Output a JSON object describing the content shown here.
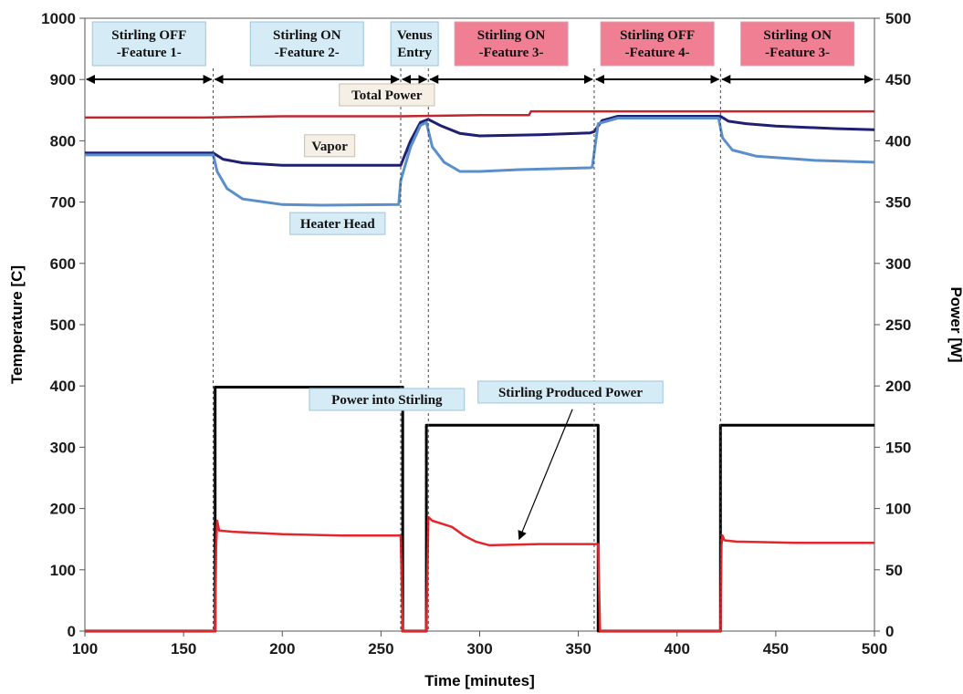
{
  "chart_data": {
    "type": "line",
    "xlabel": "Time [minutes]",
    "ylabel_left": "Temperature [C]",
    "ylabel_right": "Power [W]",
    "xlim": [
      100,
      500
    ],
    "ylim_left": [
      0,
      1000
    ],
    "ylim_right": [
      0,
      500
    ],
    "x_ticks": [
      "100",
      "150",
      "200",
      "250",
      "300",
      "350",
      "400",
      "450",
      "500"
    ],
    "y_left_ticks": [
      "0",
      "100",
      "200",
      "300",
      "400",
      "500",
      "600",
      "700",
      "800",
      "900",
      "1000"
    ],
    "y_right_ticks": [
      "0",
      "50",
      "100",
      "150",
      "200",
      "250",
      "300",
      "350",
      "400",
      "450",
      "500"
    ],
    "grid": false,
    "phase_boundaries": [
      165,
      260,
      274,
      358,
      422
    ],
    "phases": [
      {
        "lines": [
          "Stirling OFF",
          "-Feature 1-"
        ],
        "x_start": 100,
        "x_end": 165,
        "highlight": false
      },
      {
        "lines": [
          "Stirling ON",
          "-Feature 2-"
        ],
        "x_start": 165,
        "x_end": 260,
        "highlight": false
      },
      {
        "lines": [
          "Venus",
          "Entry"
        ],
        "x_start": 260,
        "x_end": 274,
        "highlight": false
      },
      {
        "lines": [
          "Stirling ON",
          "-Feature 3-"
        ],
        "x_start": 274,
        "x_end": 358,
        "highlight": true
      },
      {
        "lines": [
          "Stirling OFF",
          "-Feature 4-"
        ],
        "x_start": 358,
        "x_end": 422,
        "highlight": true
      },
      {
        "lines": [
          "Stirling ON",
          "-Feature 3-"
        ],
        "x_start": 422,
        "x_end": 500,
        "highlight": true
      }
    ],
    "series": [
      {
        "name": "Total Power",
        "axis": "right",
        "color": "#c0272d",
        "width": 2.5,
        "x": [
          100,
          102,
          104,
          160,
          200,
          260,
          300,
          325,
          326,
          360,
          420,
          500
        ],
        "y": [
          419,
          419,
          419,
          419,
          420,
          420,
          421,
          421,
          424,
          424,
          424,
          424
        ]
      },
      {
        "name": "Vapor",
        "axis": "left",
        "color": "#1f1f73",
        "width": 3,
        "x": [
          100,
          165,
          170,
          180,
          200,
          230,
          260,
          265,
          270,
          274,
          280,
          290,
          300,
          330,
          356,
          358,
          362,
          370,
          400,
          422,
          426,
          435,
          450,
          480,
          500
        ],
        "y": [
          780,
          780,
          770,
          764,
          760,
          760,
          760,
          800,
          830,
          835,
          825,
          812,
          808,
          810,
          813,
          815,
          833,
          840,
          840,
          840,
          832,
          828,
          824,
          820,
          818
        ]
      },
      {
        "name": "Heater Head",
        "axis": "left",
        "color": "#5a8fcc",
        "width": 3,
        "x": [
          100,
          165,
          167,
          172,
          180,
          200,
          220,
          259,
          260,
          265,
          270,
          273,
          276,
          282,
          290,
          300,
          320,
          356,
          357,
          360,
          370,
          400,
          421,
          423,
          428,
          440,
          470,
          500
        ],
        "y": [
          777,
          777,
          750,
          722,
          705,
          696,
          695,
          696,
          735,
          790,
          825,
          830,
          790,
          765,
          750,
          750,
          753,
          756,
          757,
          828,
          837,
          837,
          837,
          805,
          785,
          775,
          768,
          765
        ]
      },
      {
        "name": "Power into Stirling",
        "axis": "right",
        "color": "#000000",
        "width": 3,
        "x": [
          100,
          166,
          166,
          261,
          261,
          273,
          273,
          360,
          360,
          422,
          422,
          500
        ],
        "y": [
          0,
          0,
          199,
          199,
          0,
          0,
          168,
          168,
          0,
          0,
          168,
          168
        ]
      },
      {
        "name": "Stirling Produced Power",
        "axis": "right",
        "color": "#e3262c",
        "width": 2.5,
        "x": [
          100,
          166,
          166.5,
          167,
          168,
          175,
          200,
          230,
          260,
          261,
          273,
          274,
          276,
          282,
          286,
          292,
          298,
          305,
          330,
          360,
          361,
          422,
          422.5,
          423,
          424,
          430,
          460,
          500
        ],
        "y": [
          0,
          0,
          70,
          90,
          82,
          81,
          79,
          78,
          78,
          0,
          0,
          93,
          90,
          87,
          85,
          78,
          73,
          70,
          71,
          71,
          0,
          0,
          70,
          78,
          74,
          73,
          72,
          72
        ]
      }
    ],
    "annotations": [
      {
        "text": "Total Power",
        "x": 253,
        "y_left": 875
      },
      {
        "text": "Vapor",
        "x": 224,
        "y_left": 792
      },
      {
        "text": "Heater Head",
        "x": 228,
        "y_left": 665
      },
      {
        "text": "Power into Stirling",
        "x": 253,
        "y_left": 378
      },
      {
        "text": "Stirling Produced Power",
        "x": 346,
        "y_left": 390
      }
    ],
    "arrow": {
      "from_x": 347,
      "from_y_left": 362,
      "to_x": 320,
      "to_y_left": 150
    }
  }
}
